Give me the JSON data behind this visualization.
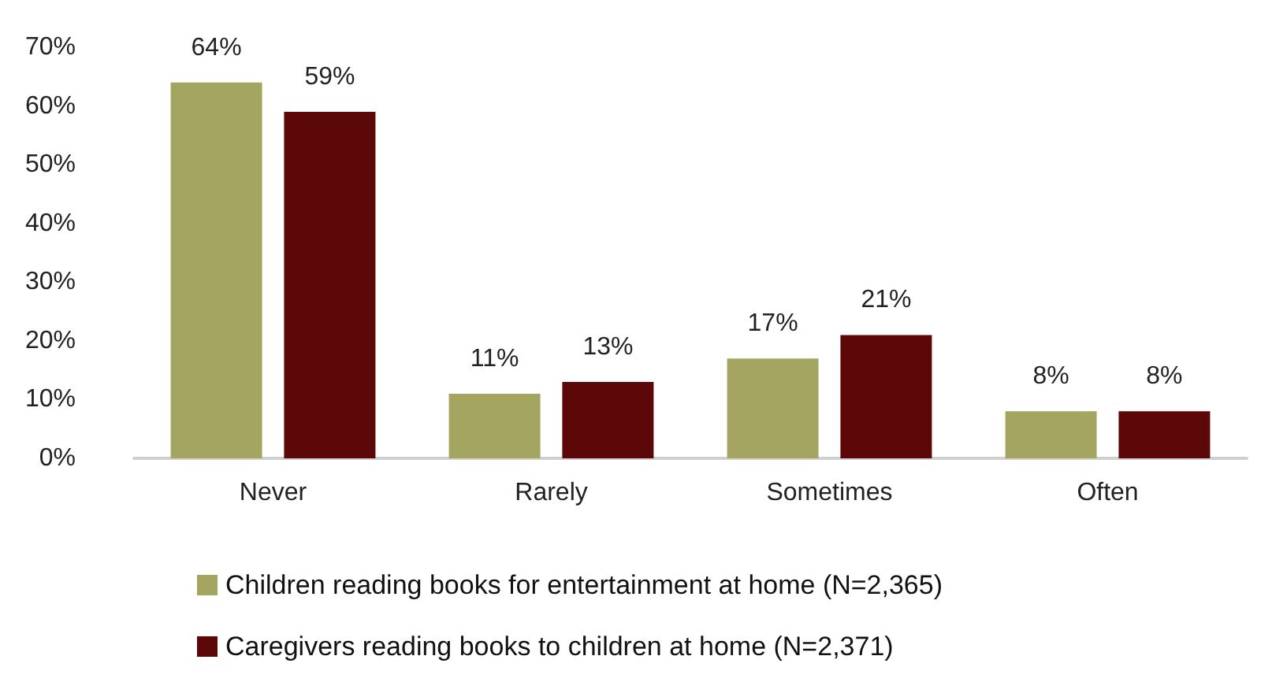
{
  "chart_data": {
    "type": "bar",
    "categories": [
      "Never",
      "Rarely",
      "Sometimes",
      "Often"
    ],
    "series": [
      {
        "name": "Children reading books for entertainment at home (N=2,365)",
        "color": "#a5a562",
        "values": [
          64,
          11,
          17,
          8
        ],
        "value_labels": [
          "64%",
          "11%",
          "17%",
          "8%"
        ]
      },
      {
        "name": "Caregivers reading books to children at home (N=2,371)",
        "color": "#5c0808",
        "values": [
          59,
          13,
          21,
          8
        ],
        "value_labels": [
          "59%",
          "13%",
          "21%",
          "8%"
        ]
      }
    ],
    "ylim": [
      0,
      70
    ],
    "yticks": [
      {
        "value": 0,
        "label": "0%"
      },
      {
        "value": 10,
        "label": "10%"
      },
      {
        "value": 20,
        "label": "20%"
      },
      {
        "value": 30,
        "label": "30%"
      },
      {
        "value": 40,
        "label": "40%"
      },
      {
        "value": 50,
        "label": "50%"
      },
      {
        "value": 60,
        "label": "60%"
      },
      {
        "value": 70,
        "label": "70%"
      }
    ],
    "grid": false,
    "legend": "bottom"
  }
}
